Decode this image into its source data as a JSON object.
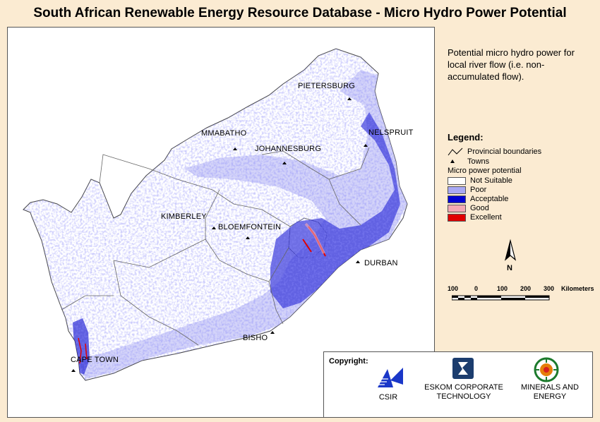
{
  "title": "South African Renewable Energy Resource Database - Micro Hydro Power Potential",
  "description": "Potential micro hydro power for local river flow (i.e. non-accumulated flow).",
  "towns": [
    {
      "name": "PIETERSBURG"
    },
    {
      "name": "NELSPRUIT"
    },
    {
      "name": "MMABATHO"
    },
    {
      "name": "JOHANNESBURG"
    },
    {
      "name": "KIMBERLEY"
    },
    {
      "name": "BLOEMFONTEIN"
    },
    {
      "name": "DURBAN"
    },
    {
      "name": "BISHO"
    },
    {
      "name": "CAPE TOWN"
    }
  ],
  "legend": {
    "title": "Legend:",
    "provincial_boundaries": "Provincial boundaries",
    "towns": "Towns",
    "micro_power_heading": "Micro power potential",
    "classes": [
      {
        "label": "Not Suitable",
        "color": "#ffffff"
      },
      {
        "label": "Poor",
        "color": "#a8a8f4"
      },
      {
        "label": "Acceptable",
        "color": "#0000d2"
      },
      {
        "label": "Good",
        "color": "#f4a8b4"
      },
      {
        "label": "Excellent",
        "color": "#e00000"
      }
    ]
  },
  "north_label": "N",
  "scale_bar": {
    "ticks": [
      "100",
      "0",
      "100",
      "200",
      "300"
    ],
    "unit": "Kilometers"
  },
  "copyright": {
    "label": "Copyright:",
    "orgs": [
      {
        "name": "CSIR"
      },
      {
        "name": "ESKOM CORPORATE TECHNOLOGY"
      },
      {
        "name": "MINERALS AND ENERGY"
      }
    ]
  }
}
